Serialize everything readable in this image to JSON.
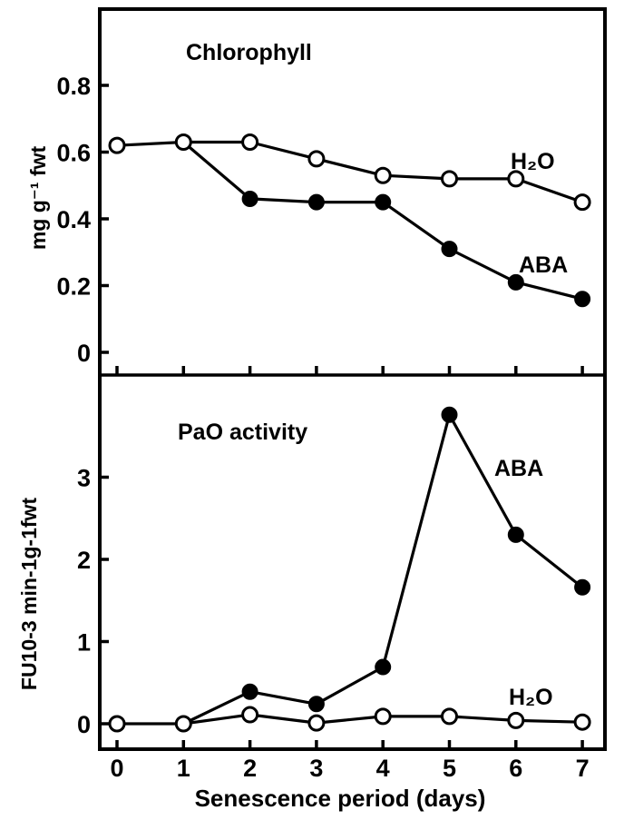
{
  "chart_data": [
    {
      "type": "line",
      "title": "Chlorophyll",
      "ylabel": "mg g⁻¹ fwt",
      "xlabel": "",
      "ylim": [
        0,
        0.8
      ],
      "yticks": [
        "0",
        "0.2",
        "0.4",
        "0.6",
        "0.8"
      ],
      "series": [
        {
          "name": "H2O",
          "label": "H₂O",
          "marker": "open-circle",
          "x": [
            0,
            1,
            2,
            3,
            4,
            5,
            6,
            7
          ],
          "y": [
            0.62,
            0.63,
            0.63,
            0.58,
            0.53,
            0.52,
            0.52,
            0.45
          ]
        },
        {
          "name": "ABA",
          "label": "ABA",
          "marker": "filled-circle",
          "x": [
            1,
            2,
            3,
            4,
            5,
            6,
            7
          ],
          "y": [
            0.63,
            0.46,
            0.45,
            0.45,
            0.31,
            0.21,
            0.16
          ]
        }
      ]
    },
    {
      "type": "line",
      "title": "PaO activity",
      "ylabel": "FU10-3  min-1g-1fwt",
      "xlabel": "Senescence period (days)",
      "xlim": [
        0,
        7
      ],
      "xticks": [
        "0",
        "1",
        "2",
        "3",
        "4",
        "5",
        "6",
        "7"
      ],
      "ylim": [
        0,
        3.8
      ],
      "yticks": [
        "0",
        "1",
        "2",
        "3"
      ],
      "series": [
        {
          "name": "H2O",
          "label": "H₂O",
          "marker": "open-circle",
          "x": [
            0,
            1,
            2,
            3,
            4,
            5,
            6,
            7
          ],
          "y": [
            0,
            0,
            0.11,
            0.01,
            0.09,
            0.09,
            0.04,
            0.02
          ]
        },
        {
          "name": "ABA",
          "label": "ABA",
          "marker": "filled-circle",
          "x": [
            1,
            2,
            3,
            4,
            5,
            6,
            7
          ],
          "y": [
            0,
            0.39,
            0.24,
            0.69,
            3.76,
            2.3,
            1.66
          ]
        }
      ]
    }
  ]
}
